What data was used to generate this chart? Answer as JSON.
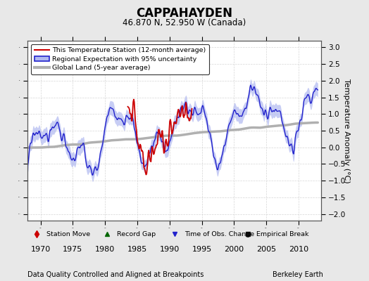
{
  "title": "CAPPAHAYDEN",
  "subtitle": "46.870 N, 52.950 W (Canada)",
  "footer_left": "Data Quality Controlled and Aligned at Breakpoints",
  "footer_right": "Berkeley Earth",
  "ylabel": "Temperature Anomaly (°C)",
  "xlim": [
    1968.0,
    2013.5
  ],
  "ylim": [
    -2.2,
    3.2
  ],
  "yticks": [
    -2,
    -1.5,
    -1,
    -0.5,
    0,
    0.5,
    1,
    1.5,
    2,
    2.5,
    3
  ],
  "xticks": [
    1970,
    1975,
    1980,
    1985,
    1990,
    1995,
    2000,
    2005,
    2010
  ],
  "background_color": "#e8e8e8",
  "plot_bg_color": "#ffffff",
  "uncertainty_color": "#b0b8f0",
  "regional_color": "#2222cc",
  "station_color": "#cc0000",
  "global_color": "#b0b0b0",
  "legend_items": [
    {
      "label": "This Temperature Station (12-month average)",
      "color": "#cc0000",
      "lw": 1.5
    },
    {
      "label": "Regional Expectation with 95% uncertainty",
      "color": "#2222cc",
      "lw": 1.5
    },
    {
      "label": "Global Land (5-year average)",
      "color": "#b0b0b0",
      "lw": 3
    }
  ]
}
